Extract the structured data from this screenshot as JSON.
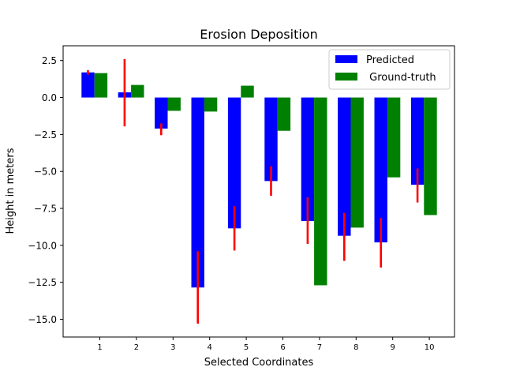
{
  "chart_data": {
    "type": "bar",
    "title": "Erosion Deposition",
    "xlabel": "Selected Coordinates",
    "ylabel": "Height in meters",
    "categories": [
      "1",
      "2",
      "3",
      "4",
      "5",
      "6",
      "7",
      "8",
      "9",
      "10"
    ],
    "ylim": [
      -16.2,
      3.5
    ],
    "yticks": [
      2.5,
      0.0,
      -2.5,
      -5.0,
      -7.5,
      -10.0,
      -12.5,
      -15.0
    ],
    "ytick_labels": [
      "2.5",
      "0.0",
      "−2.5",
      "−5.0",
      "−7.5",
      "−10.0",
      "−12.5",
      "−15.0"
    ],
    "grid": false,
    "legend_position": "upper right",
    "series": [
      {
        "name": "Predicted",
        "color": "#0000ff",
        "values": [
          1.7,
          0.35,
          -2.1,
          -12.85,
          -8.85,
          -5.65,
          -8.35,
          -9.35,
          -9.8,
          -5.9
        ],
        "error_low": [
          1.55,
          -1.95,
          -2.55,
          -15.3,
          -10.35,
          -6.65,
          -9.9,
          -11.05,
          -11.5,
          -7.1
        ],
        "error_high": [
          1.85,
          2.6,
          -1.75,
          -10.4,
          -7.35,
          -4.65,
          -6.75,
          -7.8,
          -8.15,
          -4.8
        ],
        "error_color": "#ff0000"
      },
      {
        "name": " Ground-truth",
        "color": "#008000",
        "values": [
          1.65,
          0.85,
          -0.9,
          -0.95,
          0.8,
          -2.25,
          -12.7,
          -8.8,
          -5.4,
          -7.95
        ]
      }
    ]
  }
}
